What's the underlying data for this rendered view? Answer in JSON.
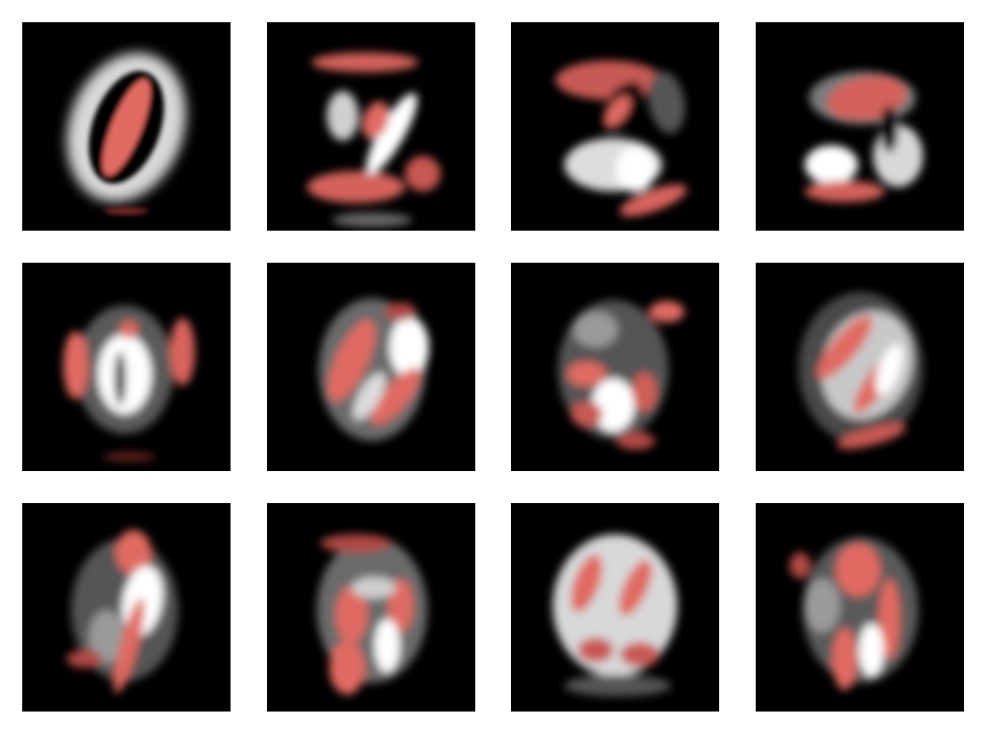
{
  "figure": {
    "background": "#ffffff",
    "panel_background": "#000000",
    "positive_color": "#ffffff",
    "negative_color": "#e06a62",
    "rows": 3,
    "columns": 4,
    "panels": [
      {
        "row": 1,
        "col": 1
      },
      {
        "row": 1,
        "col": 2
      },
      {
        "row": 1,
        "col": 3
      },
      {
        "row": 1,
        "col": 4
      },
      {
        "row": 2,
        "col": 1
      },
      {
        "row": 2,
        "col": 2
      },
      {
        "row": 2,
        "col": 3
      },
      {
        "row": 2,
        "col": 4
      },
      {
        "row": 3,
        "col": 1
      },
      {
        "row": 3,
        "col": 2
      },
      {
        "row": 3,
        "col": 3
      },
      {
        "row": 3,
        "col": 4
      }
    ]
  }
}
